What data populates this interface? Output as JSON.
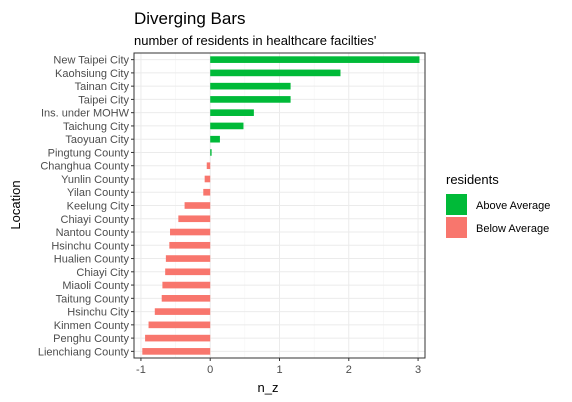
{
  "chart_data": {
    "type": "bar",
    "orientation": "horizontal",
    "title": "Diverging Bars",
    "subtitle": "number of residents in healthcare facilties'",
    "xlabel": "n_z",
    "ylabel": "Location",
    "xlim": [
      -1.1,
      3.1
    ],
    "xticks": [
      "-1",
      "0",
      "1",
      "2",
      "3"
    ],
    "grid": true,
    "legend": {
      "title": "residents",
      "position": "right",
      "entries": [
        {
          "label": "Above Average",
          "color": "#00BA38"
        },
        {
          "label": "Below Average",
          "color": "#F8766D"
        }
      ]
    },
    "categories": [
      "New Taipei City",
      "Kaohsiung City",
      "Tainan City",
      "Taipei City",
      "Ins. under MOHW",
      "Taichung City",
      "Taoyuan City",
      "Pingtung County",
      "Changhua County",
      "Yunlin County",
      "Yilan County",
      "Keelung City",
      "Chiayi County",
      "Nantou County",
      "Hsinchu County",
      "Hualien County",
      "Chiayi City",
      "Miaoli County",
      "Taitung County",
      "Hsinchu City",
      "Kinmen County",
      "Penghu County",
      "Lienchiang County"
    ],
    "values": [
      3.02,
      1.88,
      1.16,
      1.16,
      0.63,
      0.48,
      0.14,
      0.02,
      -0.05,
      -0.08,
      -0.1,
      -0.37,
      -0.46,
      -0.58,
      -0.59,
      -0.64,
      -0.65,
      -0.69,
      -0.7,
      -0.8,
      -0.89,
      -0.94,
      -0.98
    ],
    "groups": [
      "Above Average",
      "Above Average",
      "Above Average",
      "Above Average",
      "Above Average",
      "Above Average",
      "Above Average",
      "Above Average",
      "Below Average",
      "Below Average",
      "Below Average",
      "Below Average",
      "Below Average",
      "Below Average",
      "Below Average",
      "Below Average",
      "Below Average",
      "Below Average",
      "Below Average",
      "Below Average",
      "Below Average",
      "Below Average",
      "Below Average"
    ]
  }
}
